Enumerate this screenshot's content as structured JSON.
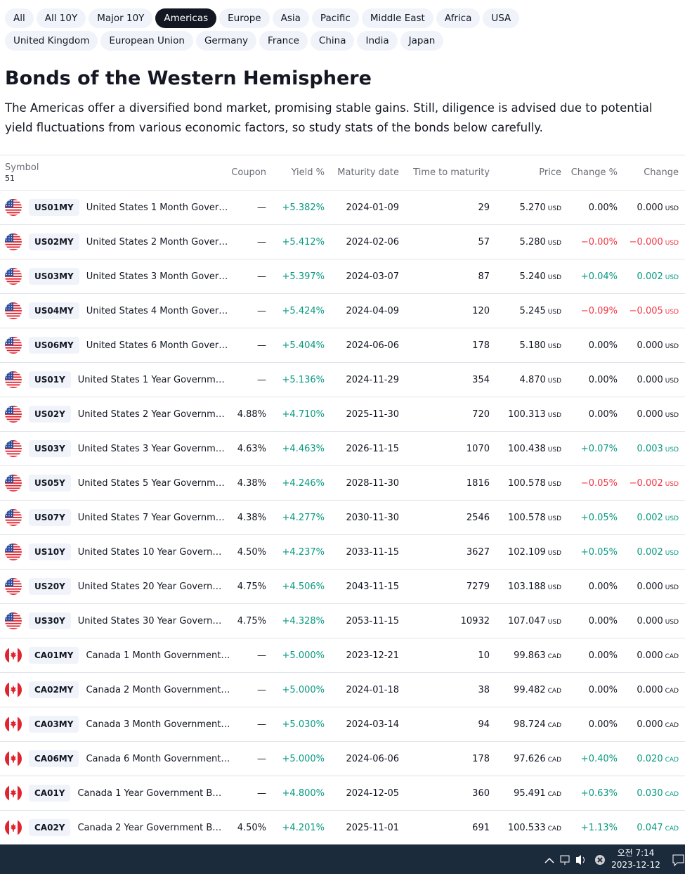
{
  "tabs": [
    "All",
    "All 10Y",
    "Major 10Y",
    "Americas",
    "Europe",
    "Asia",
    "Pacific",
    "Middle East",
    "Africa",
    "USA",
    "United Kingdom",
    "European Union",
    "Germany",
    "France",
    "China",
    "India",
    "Japan"
  ],
  "active_tab": "Americas",
  "header": {
    "title": "Bonds of the Western Hemisphere",
    "description": "The Americas offer a diversified bond market, promising stable gains. Still, diligence is advised due to potential yield fluctuations from various economic factors, so study stats of the bonds below carefully."
  },
  "table": {
    "columns": {
      "symbol": "Symbol",
      "count": 51,
      "coupon": "Coupon",
      "yield": "Yield %",
      "maturity": "Maturity date",
      "ttm": "Time to maturity",
      "price": "Price",
      "change_pct": "Change %",
      "change": "Change"
    },
    "rows": [
      {
        "symbol": "US01MY",
        "name": "United States 1 Month Gover…",
        "coupon": "—",
        "yield": "+5.382%",
        "maturity": "2024-01-09",
        "ttm": 29,
        "price": "5.270",
        "currency": "USD",
        "change_pct": "0.00%",
        "change": "0.000"
      },
      {
        "symbol": "US02MY",
        "name": "United States 2 Month Gover…",
        "coupon": "—",
        "yield": "+5.412%",
        "maturity": "2024-02-06",
        "ttm": 57,
        "price": "5.280",
        "currency": "USD",
        "change_pct": "−0.00%",
        "change": "−0.000"
      },
      {
        "symbol": "US03MY",
        "name": "United States 3 Month Gover…",
        "coupon": "—",
        "yield": "+5.397%",
        "maturity": "2024-03-07",
        "ttm": 87,
        "price": "5.240",
        "currency": "USD",
        "change_pct": "+0.04%",
        "change": "0.002"
      },
      {
        "symbol": "US04MY",
        "name": "United States 4 Month Gover…",
        "coupon": "—",
        "yield": "+5.424%",
        "maturity": "2024-04-09",
        "ttm": 120,
        "price": "5.245",
        "currency": "USD",
        "change_pct": "−0.09%",
        "change": "−0.005"
      },
      {
        "symbol": "US06MY",
        "name": "United States 6 Month Gover…",
        "coupon": "—",
        "yield": "+5.404%",
        "maturity": "2024-06-06",
        "ttm": 178,
        "price": "5.180",
        "currency": "USD",
        "change_pct": "0.00%",
        "change": "0.000"
      },
      {
        "symbol": "US01Y",
        "name": "United States 1 Year Governm…",
        "coupon": "—",
        "yield": "+5.136%",
        "maturity": "2024-11-29",
        "ttm": 354,
        "price": "4.870",
        "currency": "USD",
        "change_pct": "0.00%",
        "change": "0.000"
      },
      {
        "symbol": "US02Y",
        "name": "United States 2 Year Governm…",
        "coupon": "4.88%",
        "yield": "+4.710%",
        "maturity": "2025-11-30",
        "ttm": 720,
        "price": "100.313",
        "currency": "USD",
        "change_pct": "0.00%",
        "change": "0.000"
      },
      {
        "symbol": "US03Y",
        "name": "United States 3 Year Governm…",
        "coupon": "4.63%",
        "yield": "+4.463%",
        "maturity": "2026-11-15",
        "ttm": 1070,
        "price": "100.438",
        "currency": "USD",
        "change_pct": "+0.07%",
        "change": "0.003"
      },
      {
        "symbol": "US05Y",
        "name": "United States 5 Year Governm…",
        "coupon": "4.38%",
        "yield": "+4.246%",
        "maturity": "2028-11-30",
        "ttm": 1816,
        "price": "100.578",
        "currency": "USD",
        "change_pct": "−0.05%",
        "change": "−0.002"
      },
      {
        "symbol": "US07Y",
        "name": "United States 7 Year Governm…",
        "coupon": "4.38%",
        "yield": "+4.277%",
        "maturity": "2030-11-30",
        "ttm": 2546,
        "price": "100.578",
        "currency": "USD",
        "change_pct": "+0.05%",
        "change": "0.002"
      },
      {
        "symbol": "US10Y",
        "name": "United States 10 Year Govern…",
        "coupon": "4.50%",
        "yield": "+4.237%",
        "maturity": "2033-11-15",
        "ttm": 3627,
        "price": "102.109",
        "currency": "USD",
        "change_pct": "+0.05%",
        "change": "0.002"
      },
      {
        "symbol": "US20Y",
        "name": "United States 20 Year Govern…",
        "coupon": "4.75%",
        "yield": "+4.506%",
        "maturity": "2043-11-15",
        "ttm": 7279,
        "price": "103.188",
        "currency": "USD",
        "change_pct": "0.00%",
        "change": "0.000"
      },
      {
        "symbol": "US30Y",
        "name": "United States 30 Year Govern…",
        "coupon": "4.75%",
        "yield": "+4.328%",
        "maturity": "2053-11-15",
        "ttm": 10932,
        "price": "107.047",
        "currency": "USD",
        "change_pct": "0.00%",
        "change": "0.000"
      },
      {
        "symbol": "CA01MY",
        "name": "Canada 1 Month Government…",
        "coupon": "—",
        "yield": "+5.000%",
        "maturity": "2023-12-21",
        "ttm": 10,
        "price": "99.863",
        "currency": "CAD",
        "change_pct": "0.00%",
        "change": "0.000"
      },
      {
        "symbol": "CA02MY",
        "name": "Canada 2 Month Government…",
        "coupon": "—",
        "yield": "+5.000%",
        "maturity": "2024-01-18",
        "ttm": 38,
        "price": "99.482",
        "currency": "CAD",
        "change_pct": "0.00%",
        "change": "0.000"
      },
      {
        "symbol": "CA03MY",
        "name": "Canada 3 Month Government…",
        "coupon": "—",
        "yield": "+5.030%",
        "maturity": "2024-03-14",
        "ttm": 94,
        "price": "98.724",
        "currency": "CAD",
        "change_pct": "0.00%",
        "change": "0.000"
      },
      {
        "symbol": "CA06MY",
        "name": "Canada 6 Month Government…",
        "coupon": "—",
        "yield": "+5.000%",
        "maturity": "2024-06-06",
        "ttm": 178,
        "price": "97.626",
        "currency": "CAD",
        "change_pct": "+0.40%",
        "change": "0.020"
      },
      {
        "symbol": "CA01Y",
        "name": "Canada 1 Year Government B…",
        "coupon": "—",
        "yield": "+4.800%",
        "maturity": "2024-12-05",
        "ttm": 360,
        "price": "95.491",
        "currency": "CAD",
        "change_pct": "+0.63%",
        "change": "0.030"
      },
      {
        "symbol": "CA02Y",
        "name": "Canada 2 Year Government B…",
        "coupon": "4.50%",
        "yield": "+4.201%",
        "maturity": "2025-11-01",
        "ttm": 691,
        "price": "100.533",
        "currency": "CAD",
        "change_pct": "+1.13%",
        "change": "0.047"
      }
    ]
  },
  "taskbar": {
    "time": "오전 7:14",
    "date": "2023-12-12"
  }
}
